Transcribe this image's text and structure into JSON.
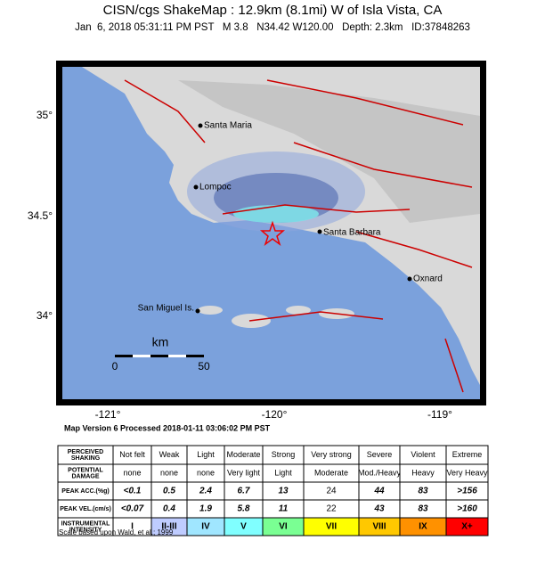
{
  "header": {
    "title": "CISN/cgs ShakeMap : 12.9km (8.1mi) W of Isla Vista, CA",
    "subtitle": "Jan  6, 2018 05:31:11 PM PST   M 3.8   N34.42 W120.00   Depth: 2.3km   ID:37848263"
  },
  "map": {
    "lat_labels": [
      "35°",
      "34.5°",
      "34°"
    ],
    "lon_labels": [
      "-121°",
      "-120°",
      "-119°"
    ],
    "cities": [
      "Santa Maria",
      "Lompoc",
      "Santa Barbara",
      "Oxnard",
      "San Miguel Is."
    ],
    "scale": {
      "unit": "km",
      "ticks": [
        "0",
        "50"
      ]
    },
    "version_note": "Map Version 6 Processed 2018-01-11 03:06:02 PM PST"
  },
  "legend": {
    "rows": [
      {
        "label": [
          "PERCEIVED",
          "SHAKING"
        ],
        "cells": [
          "Not felt",
          "Weak",
          "Light",
          "Moderate",
          "Strong",
          "Very strong",
          "Severe",
          "Violent",
          "Extreme"
        ]
      },
      {
        "label": [
          "POTENTIAL",
          "DAMAGE"
        ],
        "cells": [
          "none",
          "none",
          "none",
          "Very light",
          "Light",
          "Moderate",
          "Mod./Heavy",
          "Heavy",
          "Very Heavy"
        ]
      },
      {
        "label": [
          "PEAK ACC.(%g)"
        ],
        "cells": [
          "<0.1",
          "0.5",
          "2.4",
          "6.7",
          "13",
          "24",
          "44",
          "83",
          ">156"
        ]
      },
      {
        "label": [
          "PEAK VEL.(cm/s)"
        ],
        "cells": [
          "<0.07",
          "0.4",
          "1.9",
          "5.8",
          "11",
          "22",
          "43",
          "83",
          ">160"
        ]
      },
      {
        "label": [
          "INSTRUMENTAL",
          "INTENSITY"
        ],
        "cells": [
          "I",
          "II-III",
          "IV",
          "V",
          "VI",
          "VII",
          "VIII",
          "IX",
          "X+"
        ]
      }
    ],
    "colors": [
      "#ffffff",
      "#bfccff",
      "#a0e6ff",
      "#80ffff",
      "#7aff93",
      "#ffff00",
      "#ffc800",
      "#ff9100",
      "#ff0000"
    ],
    "footnote": "Scale based upon Wald, et al.; 1999"
  }
}
